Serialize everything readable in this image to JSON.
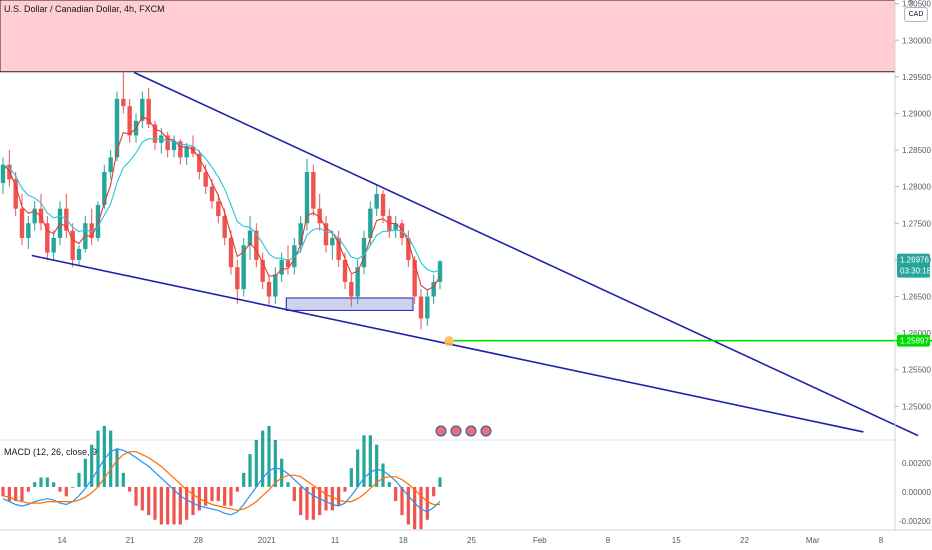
{
  "header": {
    "symbol_title": "U.S. Dollar / Canadian Dollar, 4h, FXCM",
    "currency_badge": "CAD"
  },
  "macd": {
    "label": "MACD (12, 26, close, 9)",
    "ticks": [
      "0.00200",
      "0.00000",
      "-0.00200"
    ]
  },
  "colors": {
    "candle_up": "#26a69a",
    "candle_down": "#ef5350",
    "trendline": "#1e22aa",
    "support_line": "#00dd00",
    "resistance_zone": "#ffcdd2",
    "ema_fast": "#e53935",
    "ema_slow": "#26c6da",
    "macd_line": "#2196f3",
    "signal_line": "#ff6d00",
    "price_tag": "#26a69a"
  },
  "chart_data": {
    "type": "candlestick",
    "title": "U.S. Dollar / Canadian Dollar, 4h, FXCM",
    "y_ticks": [
      1.25,
      1.255,
      1.26,
      1.265,
      1.27,
      1.275,
      1.28,
      1.285,
      1.29,
      1.295,
      1.3,
      1.305
    ],
    "y_tick_labels": [
      "1.25000",
      "1.25500",
      "1.26000",
      "1.26500",
      "1.27000",
      "1.27500",
      "1.28000",
      "1.28500",
      "1.29000",
      "1.29500",
      "1.30000",
      "1.30500"
    ],
    "ylim": [
      1.2454,
      1.3055
    ],
    "x_ticks": [
      {
        "label": "14",
        "day": 14
      },
      {
        "label": "21",
        "day": 21
      },
      {
        "label": "28",
        "day": 28
      },
      {
        "label": "2021",
        "day": 35
      },
      {
        "label": "11",
        "day": 42
      },
      {
        "label": "18",
        "day": 49
      },
      {
        "label": "25",
        "day": 56
      },
      {
        "label": "Feb",
        "day": 63
      },
      {
        "label": "8",
        "day": 70
      },
      {
        "label": "15",
        "day": 77
      },
      {
        "label": "22",
        "day": 84
      },
      {
        "label": "Mar",
        "day": 91
      },
      {
        "label": "8",
        "day": 98
      }
    ],
    "current_price": "1.26976",
    "current_price_value": 1.26976,
    "countdown": "03:30:18",
    "support_price": "1.25897",
    "support_price_value": 1.25897,
    "resistance_zone": {
      "low": 1.2957,
      "high": 1.3055
    },
    "demand_zone": {
      "start_day": 37,
      "end_day": 50,
      "low": 1.2631,
      "high": 1.2648
    },
    "upper_trendline": {
      "start": {
        "day": 21.4,
        "price": 1.2956
      },
      "end": {
        "day": 101.8,
        "price": 1.246
      }
    },
    "lower_trendline": {
      "start": {
        "day": 10.9,
        "price": 1.2706
      },
      "end": {
        "day": 96.2,
        "price": 1.2465
      }
    },
    "support_line": {
      "start_day": 54.2,
      "end_day": 104
    },
    "touch_point": {
      "day": 53.7,
      "price": 1.2589
    },
    "ohlc": [
      [
        1.2805,
        1.284,
        1.279,
        1.283
      ],
      [
        1.283,
        1.285,
        1.28,
        1.281
      ],
      [
        1.281,
        1.282,
        1.276,
        1.277
      ],
      [
        1.277,
        1.279,
        1.272,
        1.273
      ],
      [
        1.273,
        1.276,
        1.2715,
        1.275
      ],
      [
        1.275,
        1.278,
        1.274,
        1.277
      ],
      [
        1.277,
        1.279,
        1.274,
        1.275
      ],
      [
        1.275,
        1.276,
        1.27,
        1.271
      ],
      [
        1.271,
        1.274,
        1.27,
        1.273
      ],
      [
        1.273,
        1.278,
        1.272,
        1.277
      ],
      [
        1.277,
        1.279,
        1.273,
        1.274
      ],
      [
        1.274,
        1.275,
        1.269,
        1.27
      ],
      [
        1.27,
        1.272,
        1.2692,
        1.2715
      ],
      [
        1.2715,
        1.276,
        1.271,
        1.275
      ],
      [
        1.275,
        1.277,
        1.272,
        1.273
      ],
      [
        1.273,
        1.278,
        1.2725,
        1.2775
      ],
      [
        1.2775,
        1.283,
        1.277,
        1.282
      ],
      [
        1.282,
        1.285,
        1.281,
        1.284
      ],
      [
        1.284,
        1.293,
        1.2835,
        1.292
      ],
      [
        1.292,
        1.2956,
        1.29,
        1.291
      ],
      [
        1.291,
        1.292,
        1.286,
        1.287
      ],
      [
        1.287,
        1.29,
        1.286,
        1.289
      ],
      [
        1.289,
        1.293,
        1.288,
        1.292
      ],
      [
        1.292,
        1.2935,
        1.288,
        1.2885
      ],
      [
        1.2885,
        1.289,
        1.285,
        1.286
      ],
      [
        1.286,
        1.288,
        1.2845,
        1.287
      ],
      [
        1.287,
        1.2875,
        1.284,
        1.285
      ],
      [
        1.285,
        1.287,
        1.284,
        1.2862
      ],
      [
        1.2862,
        1.2865,
        1.283,
        1.284
      ],
      [
        1.284,
        1.286,
        1.283,
        1.2855
      ],
      [
        1.2855,
        1.287,
        1.284,
        1.2845
      ],
      [
        1.2845,
        1.285,
        1.281,
        1.282
      ],
      [
        1.282,
        1.283,
        1.279,
        1.28
      ],
      [
        1.28,
        1.281,
        1.277,
        1.278
      ],
      [
        1.278,
        1.279,
        1.275,
        1.276
      ],
      [
        1.276,
        1.277,
        1.272,
        1.273
      ],
      [
        1.273,
        1.274,
        1.268,
        1.269
      ],
      [
        1.269,
        1.27,
        1.264,
        1.266
      ],
      [
        1.266,
        1.273,
        1.265,
        1.272
      ],
      [
        1.272,
        1.276,
        1.27,
        1.274
      ],
      [
        1.274,
        1.275,
        1.269,
        1.27
      ],
      [
        1.27,
        1.271,
        1.266,
        1.267
      ],
      [
        1.267,
        1.268,
        1.2636,
        1.265
      ],
      [
        1.265,
        1.269,
        1.264,
        1.268
      ],
      [
        1.268,
        1.271,
        1.267,
        1.27
      ],
      [
        1.27,
        1.272,
        1.268,
        1.269
      ],
      [
        1.269,
        1.273,
        1.268,
        1.272
      ],
      [
        1.272,
        1.276,
        1.271,
        1.275
      ],
      [
        1.275,
        1.2838,
        1.274,
        1.282
      ],
      [
        1.282,
        1.283,
        1.276,
        1.277
      ],
      [
        1.277,
        1.279,
        1.274,
        1.275
      ],
      [
        1.275,
        1.276,
        1.271,
        1.272
      ],
      [
        1.272,
        1.274,
        1.27,
        1.273
      ],
      [
        1.273,
        1.274,
        1.269,
        1.27
      ],
      [
        1.27,
        1.271,
        1.266,
        1.267
      ],
      [
        1.267,
        1.268,
        1.2636,
        1.265
      ],
      [
        1.265,
        1.27,
        1.264,
        1.269
      ],
      [
        1.269,
        1.274,
        1.268,
        1.273
      ],
      [
        1.273,
        1.278,
        1.272,
        1.277
      ],
      [
        1.277,
        1.2802,
        1.276,
        1.279
      ],
      [
        1.279,
        1.2795,
        1.275,
        1.276
      ],
      [
        1.276,
        1.277,
        1.273,
        1.274
      ],
      [
        1.274,
        1.276,
        1.273,
        1.275
      ],
      [
        1.275,
        1.2755,
        1.272,
        1.273
      ],
      [
        1.273,
        1.274,
        1.269,
        1.27
      ],
      [
        1.27,
        1.2705,
        1.264,
        1.265
      ],
      [
        1.265,
        1.266,
        1.2605,
        1.262
      ],
      [
        1.262,
        1.266,
        1.261,
        1.265
      ],
      [
        1.265,
        1.268,
        1.264,
        1.267
      ],
      [
        1.267,
        1.27,
        1.266,
        1.2698
      ]
    ],
    "macd_series": {
      "macd": [
        -0.0008,
        -0.001,
        -0.0012,
        -0.0013,
        -0.0012,
        -0.001,
        -0.0009,
        -0.0008,
        -0.0009,
        -0.0011,
        -0.0012,
        -0.001,
        -0.0006,
        -0.0001,
        0.0005,
        0.0012,
        0.0019,
        0.0024,
        0.0026,
        0.0025,
        0.0023,
        0.002,
        0.0017,
        0.0014,
        0.001,
        0.0006,
        0.0002,
        -0.0002,
        -0.0006,
        -0.0009,
        -0.0011,
        -0.0013,
        -0.0014,
        -0.0015,
        -0.0016,
        -0.0018,
        -0.0019,
        -0.0017,
        -0.0012,
        -0.0006,
        0.0,
        0.0006,
        0.0011,
        0.0013,
        0.0012,
        0.0009,
        0.0005,
        0.0001,
        -0.0003,
        -0.0006,
        -0.0008,
        -0.001,
        -0.0012,
        -0.0013,
        -0.0011,
        -0.0006,
        0.0,
        0.0006,
        0.001,
        0.0012,
        0.0011,
        0.0008,
        0.0004,
        -0.0001,
        -0.0006,
        -0.0011,
        -0.0015,
        -0.0017,
        -0.0014,
        -0.001
      ],
      "signal": [
        -0.0006,
        -0.0007,
        -0.0009,
        -0.001,
        -0.0011,
        -0.0011,
        -0.0011,
        -0.001,
        -0.001,
        -0.001,
        -0.001,
        -0.001,
        -0.0009,
        -0.0007,
        -0.0004,
        0.0,
        0.0006,
        0.0012,
        0.0018,
        0.0022,
        0.0024,
        0.0024,
        0.0022,
        0.002,
        0.0017,
        0.0014,
        0.001,
        0.0006,
        0.0002,
        -0.0002,
        -0.0005,
        -0.0008,
        -0.001,
        -0.0012,
        -0.0013,
        -0.0014,
        -0.0015,
        -0.0016,
        -0.0015,
        -0.0013,
        -0.001,
        -0.0006,
        -0.0002,
        0.0003,
        0.0006,
        0.0008,
        0.0008,
        0.0007,
        0.0004,
        0.0001,
        -0.0002,
        -0.0005,
        -0.0007,
        -0.0009,
        -0.001,
        -0.001,
        -0.0008,
        -0.0005,
        -0.0001,
        0.0003,
        0.0006,
        0.0007,
        0.0007,
        0.0005,
        0.0002,
        -0.0002,
        -0.0006,
        -0.001,
        -0.0012,
        -0.0012
      ]
    }
  }
}
